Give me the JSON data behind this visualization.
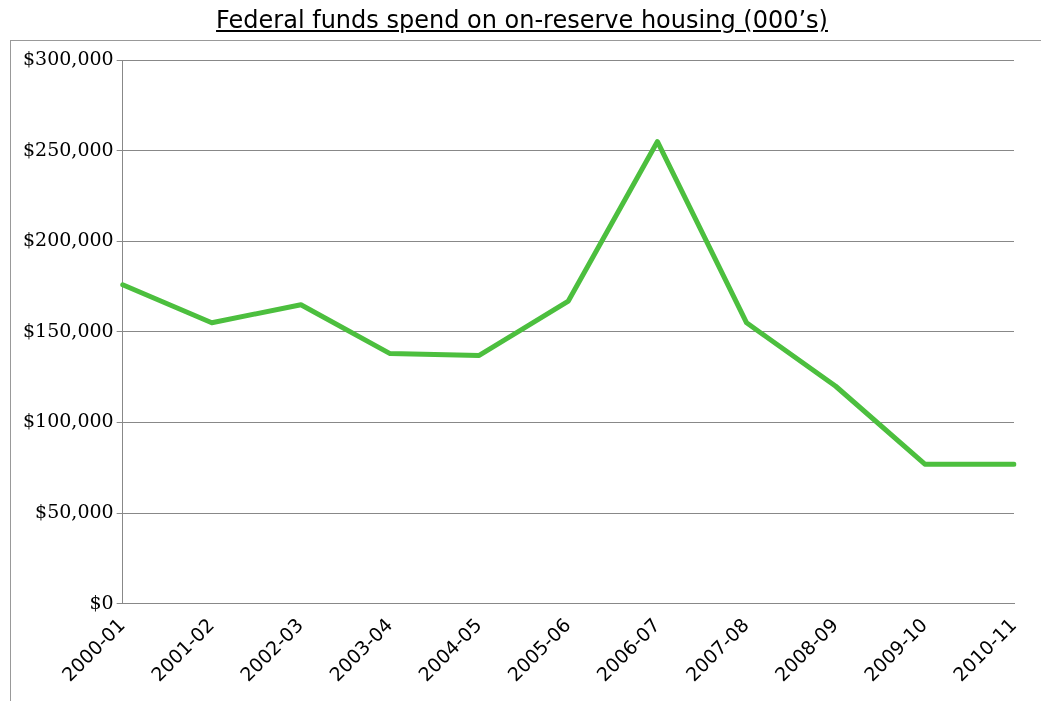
{
  "chart_data": {
    "type": "line",
    "title": "Federal funds spend on on-reserve housing (000’s)",
    "categories": [
      "2000-01",
      "2001-02",
      "2002-03",
      "2003-04",
      "2004-05",
      "2005-06",
      "2006-07",
      "2007-08",
      "2008-09",
      "2009-10",
      "2010-11"
    ],
    "series": [
      {
        "color": "#4cbf3e",
        "values": [
          176000,
          155000,
          165000,
          138000,
          137000,
          167000,
          255000,
          155000,
          120000,
          77000,
          77000
        ]
      }
    ],
    "ylim": [
      0,
      300000
    ],
    "yticks": [
      {
        "value": 0,
        "label": "$0"
      },
      {
        "value": 50000,
        "label": "$50,000"
      },
      {
        "value": 100000,
        "label": "$100,000"
      },
      {
        "value": 150000,
        "label": "$150,000"
      },
      {
        "value": 200000,
        "label": "$200,000"
      },
      {
        "value": 250000,
        "label": "$250,000"
      },
      {
        "value": 300000,
        "label": "$300,000"
      }
    ],
    "grid": "y",
    "legend": false,
    "marker": "none",
    "line_style": "solid"
  }
}
